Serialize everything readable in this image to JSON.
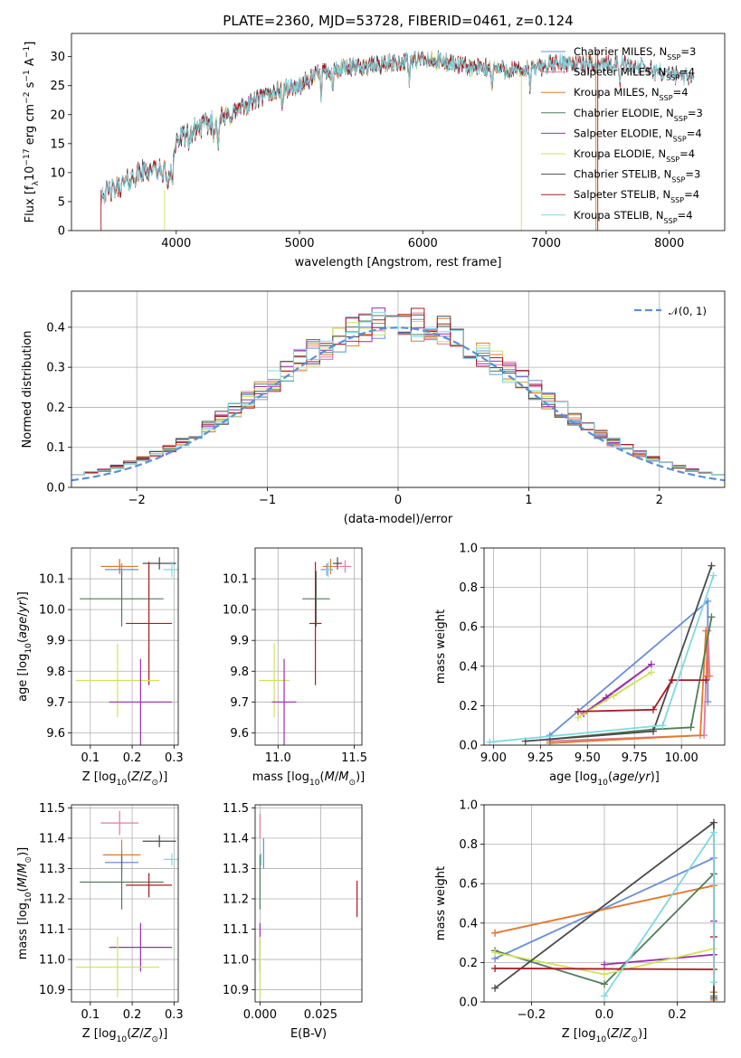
{
  "colors": {
    "chabrier_miles": "#6a8fd8",
    "salpeter_miles": "#e8789a",
    "kroupa_miles": "#e07b2c",
    "chabrier_elodie": "#4f7d5a",
    "salpeter_elodie": "#9a2fb0",
    "kroupa_elodie": "#cfe35c",
    "chabrier_stelib": "#4a4a4a",
    "salpeter_stelib": "#aa1a24",
    "kroupa_stelib": "#7fd8e0",
    "normal": "#5b8fd6"
  },
  "chart_data": [
    {
      "id": "spectrum",
      "type": "line",
      "title": "PLATE=2360, MJD=53728, FIBERID=0461, z=0.124",
      "xlabel": "wavelength [Angstrom, rest frame]",
      "ylabel": "Flux [f_λ10^-17 erg cm^-2 s^-1 A^-1]",
      "xlim": [
        3150,
        8450
      ],
      "ylim": [
        0,
        34
      ],
      "xticks": [
        "4000",
        "5000",
        "6000",
        "7000",
        "8000"
      ],
      "yticks": [
        "0",
        "5",
        "10",
        "15",
        "20",
        "25",
        "30"
      ],
      "grid": false,
      "legend": "top-right",
      "continuum": {
        "x": [
          3390,
          3500,
          3600,
          3700,
          3800,
          3950,
          4000,
          4200,
          4400,
          4600,
          4800,
          5000,
          5200,
          5400,
          5600,
          5800,
          6000,
          6200,
          6400,
          6600,
          6800,
          7000,
          7200,
          7400,
          7600,
          7800,
          8000,
          8200
        ],
        "y": [
          6.5,
          7.0,
          8.5,
          10.0,
          10.5,
          10.0,
          15.5,
          18.0,
          19.5,
          22.0,
          24.0,
          25.0,
          27.5,
          28.0,
          28.5,
          29.0,
          29.5,
          29.0,
          28.0,
          28.0,
          27.5,
          28.5,
          29.0,
          28.5,
          29.0,
          28.0,
          27.0,
          26.5
        ]
      },
      "series": [
        {
          "name": "Chabrier MILES, N_SSP=3",
          "color": "chabrier_miles",
          "range": [
            3390,
            7400
          ]
        },
        {
          "name": "Salpeter MILES, N_SSP=4",
          "color": "salpeter_miles",
          "range": [
            3390,
            7400
          ]
        },
        {
          "name": "Kroupa MILES, N_SSP=4",
          "color": "kroupa_miles",
          "range": [
            3390,
            7400
          ]
        },
        {
          "name": "Chabrier ELODIE, N_SSP=3",
          "color": "chabrier_elodie",
          "range": [
            3900,
            6800
          ]
        },
        {
          "name": "Salpeter ELODIE, N_SSP=4",
          "color": "salpeter_elodie",
          "range": [
            3900,
            6800
          ]
        },
        {
          "name": "Kroupa ELODIE, N_SSP=4",
          "color": "kroupa_elodie",
          "range": [
            3900,
            6800
          ]
        },
        {
          "name": "Chabrier STELIB, N_SSP=3",
          "color": "chabrier_stelib",
          "range": [
            3390,
            8200
          ]
        },
        {
          "name": "Salpeter STELIB, N_SSP=4",
          "color": "salpeter_stelib",
          "range": [
            3390,
            8200
          ]
        },
        {
          "name": "Kroupa STELIB, N_SSP=4",
          "color": "kroupa_stelib",
          "range": [
            3390,
            8200
          ]
        }
      ]
    },
    {
      "id": "residuals",
      "type": "histogram",
      "xlabel": "(data-model)/error",
      "ylabel": "Normed distribution",
      "xlim": [
        -2.5,
        2.5
      ],
      "ylim": [
        0,
        0.49
      ],
      "xticks": [
        "−2",
        "−1",
        "0",
        "1",
        "2"
      ],
      "yticks": [
        "0.0",
        "0.1",
        "0.2",
        "0.3",
        "0.4"
      ],
      "grid": true,
      "legend": "top-right",
      "legend_label": "N(0,1)",
      "bin_width": 0.1,
      "bin_range": [
        -2.5,
        2.5
      ]
    },
    {
      "id": "age_vs_Z",
      "type": "errorbar",
      "xlabel": "Z [log10(Z/Z_sun)]",
      "ylabel": "age [log10(age/yr)]",
      "xlim": [
        0.055,
        0.31
      ],
      "ylim": [
        9.56,
        10.2
      ],
      "xticks": [
        "0.1",
        "0.2",
        "0.3"
      ],
      "yticks": [
        "9.6",
        "9.7",
        "9.8",
        "9.9",
        "10.0",
        "10.1"
      ],
      "grid": true,
      "points": [
        {
          "color": "salpeter_miles",
          "x": 0.17,
          "xe": 0.045,
          "y": 10.14,
          "ye": 0.02
        },
        {
          "color": "kroupa_miles",
          "x": 0.17,
          "xe": 0.045,
          "y": 10.14,
          "ye": 0.025
        },
        {
          "color": "chabrier_miles",
          "x": 0.175,
          "xe": 0.04,
          "y": 10.13,
          "ye": 0.02
        },
        {
          "color": "chabrier_stelib",
          "x": 0.265,
          "xe": 0.04,
          "y": 10.15,
          "ye": 0.02
        },
        {
          "color": "kroupa_stelib",
          "x": 0.295,
          "xe": 0.02,
          "y": 10.13,
          "ye": 0.025
        },
        {
          "color": "chabrier_elodie",
          "x": 0.175,
          "xe": 0.1,
          "y": 10.035,
          "ye": 0.09
        },
        {
          "color": "salpeter_stelib",
          "x": 0.24,
          "xe": 0.055,
          "y": 9.955,
          "ye": 0.2
        },
        {
          "color": "kroupa_elodie",
          "x": 0.165,
          "xe": 0.1,
          "y": 9.77,
          "ye": 0.12
        },
        {
          "color": "salpeter_elodie",
          "x": 0.22,
          "xe": 0.075,
          "y": 9.7,
          "ye": 0.14
        }
      ]
    },
    {
      "id": "age_vs_mass",
      "type": "errorbar",
      "xlabel": "mass [log10(M/M_sun)]",
      "ylabel": "",
      "xlim": [
        10.85,
        11.55
      ],
      "ylim": [
        9.56,
        10.2
      ],
      "xticks": [
        "11.0",
        "11.5"
      ],
      "yticks": [
        "9.6",
        "9.7",
        "9.8",
        "9.9",
        "10.0",
        "10.1"
      ],
      "grid": true,
      "points": [
        {
          "color": "salpeter_miles",
          "x": 11.44,
          "xe": 0.04,
          "y": 10.14,
          "ye": 0.02
        },
        {
          "color": "kroupa_miles",
          "x": 11.345,
          "xe": 0.05,
          "y": 10.14,
          "ye": 0.025
        },
        {
          "color": "chabrier_miles",
          "x": 11.32,
          "xe": 0.04,
          "y": 10.13,
          "ye": 0.02
        },
        {
          "color": "chabrier_stelib",
          "x": 11.39,
          "xe": 0.03,
          "y": 10.15,
          "ye": 0.02
        },
        {
          "color": "kroupa_stelib",
          "x": 11.33,
          "xe": 0.02,
          "y": 10.13,
          "ye": 0.025
        },
        {
          "color": "chabrier_elodie",
          "x": 11.25,
          "xe": 0.09,
          "y": 10.035,
          "ye": 0.09
        },
        {
          "color": "salpeter_stelib",
          "x": 11.245,
          "xe": 0.04,
          "y": 9.955,
          "ye": 0.2
        },
        {
          "color": "kroupa_elodie",
          "x": 10.975,
          "xe": 0.1,
          "y": 9.77,
          "ye": 0.12
        },
        {
          "color": "salpeter_elodie",
          "x": 11.04,
          "xe": 0.08,
          "y": 9.7,
          "ye": 0.14
        }
      ]
    },
    {
      "id": "mass_weight_vs_age",
      "type": "line",
      "xlabel": "age [log10(age/yr)]",
      "ylabel": "mass weight",
      "xlim": [
        8.95,
        10.23
      ],
      "ylim": [
        0,
        1.0
      ],
      "xticks": [
        "9.00",
        "9.25",
        "9.50",
        "9.75",
        "10.00"
      ],
      "yticks": [
        "0.0",
        "0.2",
        "0.4",
        "0.6",
        "0.8",
        "1.0"
      ],
      "grid": true,
      "series": [
        {
          "color": "chabrier_miles",
          "x": [
            9.3,
            10.14,
            10.14
          ],
          "y": [
            0.05,
            0.73,
            0.22
          ]
        },
        {
          "color": "salpeter_miles",
          "x": [
            9.3,
            10.12,
            10.14,
            10.15
          ],
          "y": [
            0.02,
            0.05,
            0.58,
            0.35
          ]
        },
        {
          "color": "kroupa_miles",
          "x": [
            9.3,
            10.1,
            10.13,
            10.14
          ],
          "y": [
            0.01,
            0.05,
            0.58,
            0.35
          ]
        },
        {
          "color": "chabrier_elodie",
          "x": [
            9.3,
            9.85,
            10.05,
            10.16
          ],
          "y": [
            0.03,
            0.08,
            0.09,
            0.65
          ]
        },
        {
          "color": "salpeter_elodie",
          "x": [
            9.6,
            9.84,
            9.48,
            9.6
          ],
          "y": [
            0.24,
            0.41,
            0.16,
            0.24
          ]
        },
        {
          "color": "kroupa_elodie",
          "x": [
            9.45,
            9.84,
            9.64
          ],
          "y": [
            0.14,
            0.37,
            0.25
          ]
        },
        {
          "color": "chabrier_stelib",
          "x": [
            9.17,
            9.85,
            10.16
          ],
          "y": [
            0.02,
            0.07,
            0.91
          ]
        },
        {
          "color": "salpeter_stelib",
          "x": [
            9.45,
            9.85,
            9.95,
            10.13
          ],
          "y": [
            0.17,
            0.18,
            0.33,
            0.33
          ]
        },
        {
          "color": "kroupa_stelib",
          "x": [
            8.98,
            9.9,
            10.17
          ],
          "y": [
            0.015,
            0.1,
            0.86
          ]
        }
      ]
    },
    {
      "id": "mass_vs_Z",
      "type": "errorbar",
      "xlabel": "Z [log10(Z/Z_sun)]",
      "ylabel": "mass [log10(M/M_sun)]",
      "xlim": [
        0.055,
        0.31
      ],
      "ylim": [
        10.86,
        11.51
      ],
      "xticks": [
        "0.1",
        "0.2",
        "0.3"
      ],
      "yticks": [
        "10.9",
        "11.0",
        "11.1",
        "11.2",
        "11.3",
        "11.4",
        "11.5"
      ],
      "grid": true,
      "points": [
        {
          "color": "salpeter_miles",
          "x": 0.17,
          "xe": 0.045,
          "y": 11.45,
          "ye": 0.04
        },
        {
          "color": "chabrier_stelib",
          "x": 0.265,
          "xe": 0.04,
          "y": 11.39,
          "ye": 0.02
        },
        {
          "color": "kroupa_miles",
          "x": 0.175,
          "xe": 0.045,
          "y": 11.345,
          "ye": 0.05
        },
        {
          "color": "chabrier_miles",
          "x": 0.175,
          "xe": 0.04,
          "y": 11.32,
          "ye": 0.04
        },
        {
          "color": "kroupa_stelib",
          "x": 0.295,
          "xe": 0.02,
          "y": 11.33,
          "ye": 0.02
        },
        {
          "color": "chabrier_elodie",
          "x": 0.175,
          "xe": 0.1,
          "y": 11.255,
          "ye": 0.09
        },
        {
          "color": "salpeter_stelib",
          "x": 0.24,
          "xe": 0.055,
          "y": 11.245,
          "ye": 0.04
        },
        {
          "color": "salpeter_elodie",
          "x": 0.22,
          "xe": 0.075,
          "y": 11.04,
          "ye": 0.08
        },
        {
          "color": "kroupa_elodie",
          "x": 0.165,
          "xe": 0.1,
          "y": 10.975,
          "ye": 0.1
        }
      ]
    },
    {
      "id": "mass_vs_ebv",
      "type": "errorbar",
      "xlabel": "E(B-V)",
      "ylabel": "",
      "xlim": [
        -0.002,
        0.042
      ],
      "ylim": [
        10.86,
        11.51
      ],
      "xticks": [
        "0.000",
        "0.025"
      ],
      "yticks": [
        "10.9",
        "11.0",
        "11.1",
        "11.2",
        "11.3",
        "11.4",
        "11.5"
      ],
      "grid": true,
      "points": [
        {
          "color": "salpeter_miles",
          "x": 0.0,
          "xe": 0,
          "y": 11.44,
          "ye": 0.04
        },
        {
          "color": "chabrier_miles",
          "x": 0.0015,
          "xe": 0,
          "y": 11.35,
          "ye": 0.05
        },
        {
          "color": "kroupa_stelib",
          "x": 0.0005,
          "xe": 0,
          "y": 11.33,
          "ye": 0.02
        },
        {
          "color": "chabrier_elodie",
          "x": 0.0,
          "xe": 0,
          "y": 11.255,
          "ye": 0.09
        },
        {
          "color": "salpeter_elodie",
          "x": 0.0,
          "xe": 0,
          "y": 11.04,
          "ye": 0.08
        },
        {
          "color": "kroupa_elodie",
          "x": 0.0,
          "xe": 0,
          "y": 10.975,
          "ye": 0.1
        },
        {
          "color": "salpeter_stelib",
          "x": 0.04,
          "xe": 0,
          "y": 11.2,
          "ye": 0.06
        }
      ]
    },
    {
      "id": "mass_weight_vs_Z",
      "type": "line",
      "xlabel": "Z [log10(Z/Z_sun)]",
      "ylabel": "mass weight",
      "xlim": [
        -0.33,
        0.33
      ],
      "ylim": [
        0,
        1.0
      ],
      "xticks": [
        "−0.2",
        "0.0",
        "0.2"
      ],
      "yticks": [
        "0.0",
        "0.2",
        "0.4",
        "0.6",
        "0.8",
        "1.0"
      ],
      "grid": true,
      "series": [
        {
          "color": "chabrier_miles",
          "x": [
            -0.3,
            0.3,
            0.3
          ],
          "y": [
            0.22,
            0.73,
            0.05
          ]
        },
        {
          "color": "salpeter_miles",
          "x": [
            -0.3,
            0.3,
            0.3,
            0.3
          ],
          "y": [
            0.35,
            0.59,
            0.02,
            0.05
          ]
        },
        {
          "color": "kroupa_miles",
          "x": [
            -0.3,
            0.3,
            0.3,
            0.3
          ],
          "y": [
            0.35,
            0.59,
            0.01,
            0.05
          ]
        },
        {
          "color": "chabrier_elodie",
          "x": [
            -0.3,
            0.0,
            0.3,
            0.3
          ],
          "y": [
            0.26,
            0.09,
            0.65,
            0.03
          ]
        },
        {
          "color": "salpeter_elodie",
          "x": [
            0.0,
            0.3,
            0.3
          ],
          "y": [
            0.19,
            0.24,
            0.41
          ]
        },
        {
          "color": "kroupa_elodie",
          "x": [
            -0.3,
            0.0,
            0.3
          ],
          "y": [
            0.25,
            0.14,
            0.27
          ]
        },
        {
          "color": "chabrier_stelib",
          "x": [
            -0.3,
            0.3,
            0.3
          ],
          "y": [
            0.07,
            0.91,
            0.02
          ]
        },
        {
          "color": "salpeter_stelib",
          "x": [
            -0.3,
            0.3,
            0.3
          ],
          "y": [
            0.17,
            0.165,
            0.33
          ]
        },
        {
          "color": "kroupa_stelib",
          "x": [
            0.0,
            0.3,
            0.3
          ],
          "y": [
            0.03,
            0.86,
            0.1
          ]
        }
      ]
    }
  ]
}
